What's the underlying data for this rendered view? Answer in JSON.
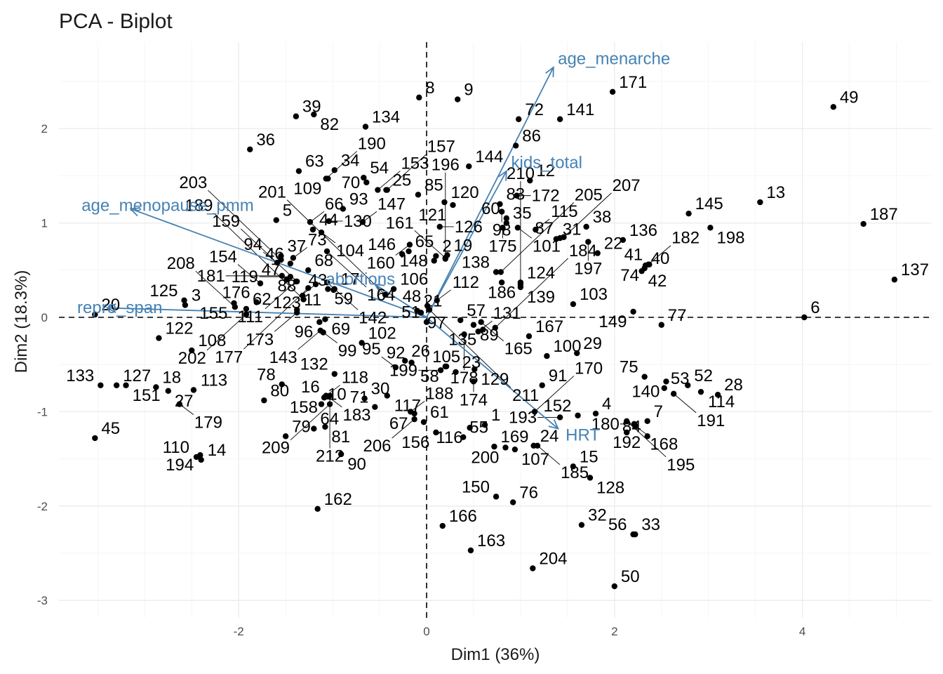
{
  "chart_data": {
    "type": "scatter",
    "title": "PCA - Biplot",
    "xlabel": "Dim1 (36%)",
    "ylabel": "Dim2 (18.3%)",
    "xlim": [
      -3.95,
      5.35
    ],
    "ylim": [
      -3.15,
      2.9
    ],
    "xticks": [
      -2,
      0,
      2,
      4
    ],
    "yticks": [
      -3,
      -2,
      -1,
      0,
      1,
      2
    ],
    "xtick_labels": [
      "-2",
      "0",
      "2",
      "4"
    ],
    "ytick_labels": [
      "-3",
      "-2",
      "-1",
      "0",
      "1",
      "2"
    ],
    "grid": true,
    "reference_lines": {
      "x": 0,
      "y": 0,
      "style": "dashed"
    },
    "point_color": "#000000",
    "variable_color": "#4682b4",
    "variables": [
      {
        "name": "age_menarche",
        "x": 1.35,
        "y": 2.65
      },
      {
        "name": "kids_total",
        "x": 0.85,
        "y": 1.55
      },
      {
        "name": "age_menopause_pmm",
        "x": -3.15,
        "y": 1.15
      },
      {
        "name": "repro_span",
        "x": -3.4,
        "y": 0.1
      },
      {
        "name": "abortions",
        "x": -0.55,
        "y": 0.35
      },
      {
        "name": "HRT",
        "x": 1.4,
        "y": -1.18
      }
    ],
    "points": [
      {
        "label": "1",
        "x": 0.62,
        "y": -1.14
      },
      {
        "label": "2",
        "x": 0.1,
        "y": 0.65
      },
      {
        "label": "3",
        "x": -2.57,
        "y": 0.13
      },
      {
        "label": "4",
        "x": 1.8,
        "y": -1.02
      },
      {
        "label": "5",
        "x": -1.6,
        "y": 1.03
      },
      {
        "label": "6",
        "x": 4.02,
        "y": 0.0
      },
      {
        "label": "7",
        "x": 2.35,
        "y": -1.1
      },
      {
        "label": "8",
        "x": -0.08,
        "y": 2.33
      },
      {
        "label": "9",
        "x": 0.33,
        "y": 2.31
      },
      {
        "label": "10",
        "x": -1.12,
        "y": -0.92
      },
      {
        "label": "11",
        "x": -1.38,
        "y": 0.08
      },
      {
        "label": "12",
        "x": 1.1,
        "y": 1.45
      },
      {
        "label": "13",
        "x": 3.55,
        "y": 1.22
      },
      {
        "label": "14",
        "x": -2.4,
        "y": -1.51
      },
      {
        "label": "15",
        "x": 1.56,
        "y": -1.58
      },
      {
        "label": "16",
        "x": -1.07,
        "y": -0.84
      },
      {
        "label": "17",
        "x": -0.98,
        "y": 0.3
      },
      {
        "label": "18",
        "x": -2.88,
        "y": -0.74
      },
      {
        "label": "19",
        "x": 0.22,
        "y": 0.66
      },
      {
        "label": "20",
        "x": -3.53,
        "y": 0.03
      },
      {
        "label": "21",
        "x": -0.1,
        "y": 0.07
      },
      {
        "label": "22",
        "x": 1.82,
        "y": 0.68
      },
      {
        "label": "23",
        "x": 0.31,
        "y": -0.58
      },
      {
        "label": "24",
        "x": 1.14,
        "y": -1.36
      },
      {
        "label": "25",
        "x": -0.43,
        "y": 1.35
      },
      {
        "label": "26",
        "x": -0.23,
        "y": -0.46
      },
      {
        "label": "27",
        "x": -2.75,
        "y": -0.78
      },
      {
        "label": "28",
        "x": 3.1,
        "y": -0.82
      },
      {
        "label": "29",
        "x": 1.6,
        "y": -0.38
      },
      {
        "label": "30",
        "x": -0.66,
        "y": -0.86
      },
      {
        "label": "31",
        "x": 1.38,
        "y": 0.83
      },
      {
        "label": "32",
        "x": 1.65,
        "y": -2.2
      },
      {
        "label": "33",
        "x": 2.22,
        "y": -2.3
      },
      {
        "label": "34",
        "x": -0.98,
        "y": 1.56
      },
      {
        "label": "35",
        "x": 0.85,
        "y": 1.0
      },
      {
        "label": "36",
        "x": -1.88,
        "y": 1.78
      },
      {
        "label": "37",
        "x": -1.55,
        "y": 0.65
      },
      {
        "label": "38",
        "x": 1.7,
        "y": 0.96
      },
      {
        "label": "39",
        "x": -1.39,
        "y": 2.13
      },
      {
        "label": "40",
        "x": 2.32,
        "y": 0.52
      },
      {
        "label": "41",
        "x": 2.37,
        "y": 0.56
      },
      {
        "label": "42",
        "x": 2.29,
        "y": 0.49
      },
      {
        "label": "43",
        "x": -0.99,
        "y": 0.29
      },
      {
        "label": "44",
        "x": -1.21,
        "y": 0.93
      },
      {
        "label": "45",
        "x": -3.53,
        "y": -1.28
      },
      {
        "label": "46",
        "x": -1.45,
        "y": 0.57
      },
      {
        "label": "47",
        "x": -1.49,
        "y": 0.4
      },
      {
        "label": "48",
        "x": 0.01,
        "y": 0.12
      },
      {
        "label": "49",
        "x": 4.33,
        "y": 2.23
      },
      {
        "label": "50",
        "x": 2.0,
        "y": -2.85
      },
      {
        "label": "51",
        "x": 0.0,
        "y": -0.05
      },
      {
        "label": "52",
        "x": 2.78,
        "y": -0.72
      },
      {
        "label": "53",
        "x": 2.53,
        "y": -0.75
      },
      {
        "label": "54",
        "x": -0.67,
        "y": 1.48
      },
      {
        "label": "55",
        "x": 0.39,
        "y": -1.27
      },
      {
        "label": "56",
        "x": 2.2,
        "y": -2.3
      },
      {
        "label": "57",
        "x": 0.36,
        "y": -0.03
      },
      {
        "label": "58",
        "x": 0.2,
        "y": -0.52
      },
      {
        "label": "59",
        "x": -1.05,
        "y": 0.3
      },
      {
        "label": "60",
        "x": 0.85,
        "y": 1.05
      },
      {
        "label": "61",
        "x": -0.03,
        "y": -1.11
      },
      {
        "label": "62",
        "x": -1.92,
        "y": 0.09
      },
      {
        "label": "63",
        "x": -1.36,
        "y": 1.55
      },
      {
        "label": "64",
        "x": -1.2,
        "y": -1.18
      },
      {
        "label": "65",
        "x": -0.19,
        "y": 0.7
      },
      {
        "label": "66",
        "x": -1.24,
        "y": 1.01
      },
      {
        "label": "67",
        "x": -0.13,
        "y": -1.02
      },
      {
        "label": "68",
        "x": -1.26,
        "y": 0.5
      },
      {
        "label": "69",
        "x": -1.08,
        "y": -0.02
      },
      {
        "label": "70",
        "x": -0.64,
        "y": 1.43
      },
      {
        "label": "71",
        "x": -0.55,
        "y": -0.95
      },
      {
        "label": "72",
        "x": 0.98,
        "y": 2.1
      },
      {
        "label": "73",
        "x": -1.42,
        "y": 0.63
      },
      {
        "label": "74",
        "x": 2.33,
        "y": 0.55
      },
      {
        "label": "75",
        "x": 2.32,
        "y": -0.63
      },
      {
        "label": "76",
        "x": 0.92,
        "y": -1.96
      },
      {
        "label": "77",
        "x": 2.5,
        "y": -0.08
      },
      {
        "label": "78",
        "x": -1.54,
        "y": -0.71
      },
      {
        "label": "79",
        "x": -1.5,
        "y": -1.26
      },
      {
        "label": "80",
        "x": -1.73,
        "y": -0.88
      },
      {
        "label": "81",
        "x": -1.08,
        "y": -1.16
      },
      {
        "label": "82",
        "x": -1.2,
        "y": 2.15
      },
      {
        "label": "83",
        "x": 0.78,
        "y": 1.2
      },
      {
        "label": "84",
        "x": 2.35,
        "y": -1.26
      },
      {
        "label": "85",
        "x": -0.09,
        "y": 1.3
      },
      {
        "label": "86",
        "x": 0.95,
        "y": 1.82
      },
      {
        "label": "87",
        "x": 1.42,
        "y": 0.84
      },
      {
        "label": "88",
        "x": -1.32,
        "y": 0.23
      },
      {
        "label": "89",
        "x": 0.5,
        "y": -0.08
      },
      {
        "label": "90",
        "x": -0.91,
        "y": -1.45
      },
      {
        "label": "91",
        "x": 1.23,
        "y": -0.72
      },
      {
        "label": "92",
        "x": -0.16,
        "y": -0.48
      },
      {
        "label": "93",
        "x": -0.89,
        "y": 1.15
      },
      {
        "label": "94",
        "x": -1.59,
        "y": 0.58
      },
      {
        "label": "95",
        "x": -0.33,
        "y": -0.53
      },
      {
        "label": "96",
        "x": -1.14,
        "y": -0.05
      },
      {
        "label": "97",
        "x": -0.06,
        "y": 0.05
      },
      {
        "label": "98",
        "x": 0.8,
        "y": 1.12
      },
      {
        "label": "99",
        "x": -1.1,
        "y": -0.16
      },
      {
        "label": "100",
        "x": 1.28,
        "y": -0.41
      },
      {
        "label": "101",
        "x": 0.97,
        "y": 0.95
      },
      {
        "label": "102",
        "x": -0.69,
        "y": -0.27
      },
      {
        "label": "103",
        "x": 1.56,
        "y": 0.14
      },
      {
        "label": "104",
        "x": -1.12,
        "y": 0.9
      },
      {
        "label": "105",
        "x": 0.21,
        "y": -0.52
      },
      {
        "label": "106",
        "x": -0.35,
        "y": 0.3
      },
      {
        "label": "107",
        "x": 0.94,
        "y": -1.4
      },
      {
        "label": "108",
        "x": -2.5,
        "y": -0.35
      },
      {
        "label": "109",
        "x": -1.05,
        "y": 1.47
      },
      {
        "label": "110",
        "x": -2.45,
        "y": -1.48
      },
      {
        "label": "111",
        "x": -1.39,
        "y": 0.38
      },
      {
        "label": "112",
        "x": 0.11,
        "y": 0.18
      },
      {
        "label": "113",
        "x": -2.48,
        "y": -0.77
      },
      {
        "label": "114",
        "x": 2.92,
        "y": -0.79
      },
      {
        "label": "115",
        "x": 1.16,
        "y": 0.93
      },
      {
        "label": "116",
        "x": 0.46,
        "y": -1.17
      },
      {
        "label": "117",
        "x": -0.42,
        "y": -0.83
      },
      {
        "label": "118",
        "x": -1.07,
        "y": -0.83
      },
      {
        "label": "119",
        "x": -1.45,
        "y": 0.43
      },
      {
        "label": "120",
        "x": 0.19,
        "y": 1.22
      },
      {
        "label": "121",
        "x": 0.28,
        "y": 1.19
      },
      {
        "label": "122",
        "x": -2.85,
        "y": -0.22
      },
      {
        "label": "123",
        "x": -1.18,
        "y": 0.35
      },
      {
        "label": "124",
        "x": 1.0,
        "y": 0.37
      },
      {
        "label": "125",
        "x": -2.58,
        "y": 0.18
      },
      {
        "label": "126",
        "x": 0.14,
        "y": 0.96
      },
      {
        "label": "127",
        "x": -3.3,
        "y": -0.72
      },
      {
        "label": "128",
        "x": 1.74,
        "y": -1.7
      },
      {
        "label": "129",
        "x": 0.51,
        "y": -0.55
      },
      {
        "label": "130",
        "x": -1.04,
        "y": 1.02
      },
      {
        "label": "131",
        "x": 0.55,
        "y": -0.15
      },
      {
        "label": "132",
        "x": -0.98,
        "y": -0.6
      },
      {
        "label": "133",
        "x": -3.47,
        "y": -0.72
      },
      {
        "label": "134",
        "x": -0.65,
        "y": 2.02
      },
      {
        "label": "135",
        "x": 0.6,
        "y": -0.13
      },
      {
        "label": "136",
        "x": 2.09,
        "y": 0.82
      },
      {
        "label": "137",
        "x": 4.98,
        "y": 0.4
      },
      {
        "label": "138",
        "x": 0.74,
        "y": 0.48
      },
      {
        "label": "139",
        "x": 1.0,
        "y": 0.32
      },
      {
        "label": "140",
        "x": 2.55,
        "y": -0.68
      },
      {
        "label": "141",
        "x": 1.42,
        "y": 2.1
      },
      {
        "label": "142",
        "x": -1.06,
        "y": 0.37
      },
      {
        "label": "143",
        "x": -1.13,
        "y": -0.14
      },
      {
        "label": "144",
        "x": 0.45,
        "y": 1.6
      },
      {
        "label": "145",
        "x": 2.79,
        "y": 1.1
      },
      {
        "label": "146",
        "x": -0.26,
        "y": 0.67
      },
      {
        "label": "147",
        "x": -0.68,
        "y": 1.01
      },
      {
        "label": "148",
        "x": 0.08,
        "y": 0.6
      },
      {
        "label": "149",
        "x": 2.2,
        "y": 0.06
      },
      {
        "label": "150",
        "x": 0.74,
        "y": -1.9
      },
      {
        "label": "151",
        "x": -3.2,
        "y": -0.72
      },
      {
        "label": "152",
        "x": 1.61,
        "y": -1.04
      },
      {
        "label": "153",
        "x": -0.52,
        "y": 1.35
      },
      {
        "label": "154",
        "x": -1.77,
        "y": 0.36
      },
      {
        "label": "155",
        "x": -2.05,
        "y": 0.15
      },
      {
        "label": "156",
        "x": 0.1,
        "y": -1.22
      },
      {
        "label": "157",
        "x": -0.42,
        "y": 1.35
      },
      {
        "label": "158",
        "x": -1.09,
        "y": -0.85
      },
      {
        "label": "159",
        "x": -1.38,
        "y": 0.38
      },
      {
        "label": "160",
        "x": -0.18,
        "y": 0.77
      },
      {
        "label": "161",
        "x": 0.2,
        "y": 0.63
      },
      {
        "label": "162",
        "x": -1.16,
        "y": -2.03
      },
      {
        "label": "163",
        "x": 0.47,
        "y": -2.47
      },
      {
        "label": "164",
        "x": -1.06,
        "y": 0.7
      },
      {
        "label": "165",
        "x": 0.58,
        "y": -0.05
      },
      {
        "label": "166",
        "x": 0.17,
        "y": -2.21
      },
      {
        "label": "167",
        "x": 1.09,
        "y": -0.2
      },
      {
        "label": "168",
        "x": 2.22,
        "y": -1.15
      },
      {
        "label": "169",
        "x": 0.72,
        "y": -1.37
      },
      {
        "label": "170",
        "x": 1.15,
        "y": -1.0
      },
      {
        "label": "171",
        "x": 1.98,
        "y": 2.39
      },
      {
        "label": "172",
        "x": 0.96,
        "y": 1.29
      },
      {
        "label": "173",
        "x": -1.38,
        "y": 0.05
      },
      {
        "label": "174",
        "x": 0.5,
        "y": -0.68
      },
      {
        "label": "175",
        "x": 0.81,
        "y": 0.95
      },
      {
        "label": "176",
        "x": -1.81,
        "y": 0.16
      },
      {
        "label": "177",
        "x": -1.26,
        "y": 0.31
      },
      {
        "label": "178",
        "x": 0.4,
        "y": -0.18
      },
      {
        "label": "179",
        "x": -2.63,
        "y": -0.92
      },
      {
        "label": "180",
        "x": 2.21,
        "y": -1.13
      },
      {
        "label": "181",
        "x": -1.54,
        "y": 0.44
      },
      {
        "label": "182",
        "x": 2.36,
        "y": 0.56
      },
      {
        "label": "183",
        "x": -1.05,
        "y": -0.84
      },
      {
        "label": "184",
        "x": 0.73,
        "y": -0.11
      },
      {
        "label": "185",
        "x": 1.18,
        "y": -1.36
      },
      {
        "label": "186",
        "x": 0.8,
        "y": 0.37
      },
      {
        "label": "187",
        "x": 4.65,
        "y": 0.99
      },
      {
        "label": "188",
        "x": -0.17,
        "y": -1.0
      },
      {
        "label": "189",
        "x": -1.31,
        "y": 0.19
      },
      {
        "label": "190",
        "x": -1.07,
        "y": 1.47
      },
      {
        "label": "191",
        "x": 2.63,
        "y": -0.81
      },
      {
        "label": "192",
        "x": 2.13,
        "y": -1.22
      },
      {
        "label": "193",
        "x": 1.42,
        "y": -1.06
      },
      {
        "label": "194",
        "x": -2.41,
        "y": -1.46
      },
      {
        "label": "195",
        "x": 2.13,
        "y": -1.1
      },
      {
        "label": "196",
        "x": 0.2,
        "y": 0.62
      },
      {
        "label": "197",
        "x": 1.72,
        "y": 0.8
      },
      {
        "label": "198",
        "x": 3.02,
        "y": 0.95
      },
      {
        "label": "199",
        "x": 0.15,
        "y": -0.56
      },
      {
        "label": "200",
        "x": 0.84,
        "y": -1.38
      },
      {
        "label": "201",
        "x": -0.44,
        "y": 0.24
      },
      {
        "label": "202",
        "x": -1.92,
        "y": 0.03
      },
      {
        "label": "203",
        "x": -1.55,
        "y": 0.61
      },
      {
        "label": "204",
        "x": 1.13,
        "y": -2.66
      },
      {
        "label": "205",
        "x": 0.79,
        "y": 0.48
      },
      {
        "label": "206",
        "x": -0.13,
        "y": -1.08
      },
      {
        "label": "207",
        "x": 1.46,
        "y": 0.85
      },
      {
        "label": "208",
        "x": -2.04,
        "y": 0.11
      },
      {
        "label": "209",
        "x": -1.03,
        "y": -0.92
      },
      {
        "label": "210",
        "x": 1.0,
        "y": 0.35
      },
      {
        "label": "211",
        "x": 0.03,
        "y": 0.08
      },
      {
        "label": "212",
        "x": -1.03,
        "y": -0.83
      }
    ]
  }
}
